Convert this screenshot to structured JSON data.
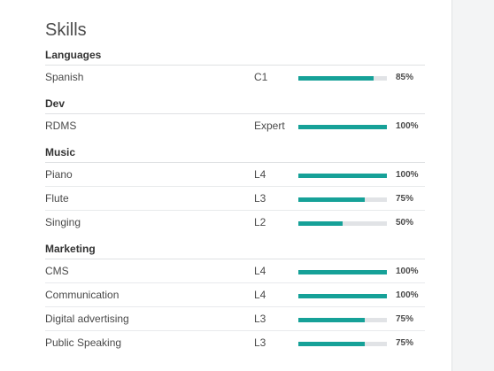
{
  "title": "Skills",
  "colors": {
    "bar_fill": "#16a198",
    "bar_track": "#e1e3e6"
  },
  "groups": [
    {
      "name": "Languages",
      "skills": [
        {
          "name": "Spanish",
          "level": "C1",
          "progress": 85,
          "progress_label": "85%"
        }
      ]
    },
    {
      "name": "Dev",
      "skills": [
        {
          "name": "RDMS",
          "level": "Expert",
          "progress": 100,
          "progress_label": "100%"
        }
      ]
    },
    {
      "name": "Music",
      "skills": [
        {
          "name": "Piano",
          "level": "L4",
          "progress": 100,
          "progress_label": "100%"
        },
        {
          "name": "Flute",
          "level": "L3",
          "progress": 75,
          "progress_label": "75%"
        },
        {
          "name": "Singing",
          "level": "L2",
          "progress": 50,
          "progress_label": "50%"
        }
      ]
    },
    {
      "name": "Marketing",
      "skills": [
        {
          "name": "CMS",
          "level": "L4",
          "progress": 100,
          "progress_label": "100%"
        },
        {
          "name": "Communication",
          "level": "L4",
          "progress": 100,
          "progress_label": "100%"
        },
        {
          "name": "Digital advertising",
          "level": "L3",
          "progress": 75,
          "progress_label": "75%"
        },
        {
          "name": "Public Speaking",
          "level": "L3",
          "progress": 75,
          "progress_label": "75%"
        }
      ]
    }
  ]
}
